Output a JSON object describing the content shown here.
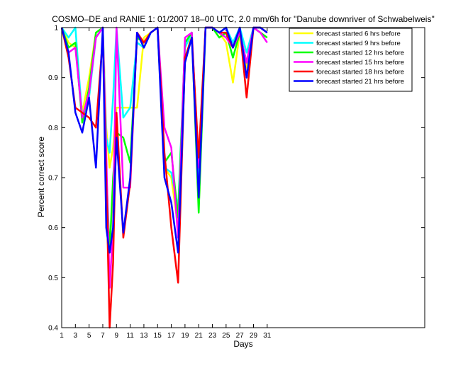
{
  "chart_data": {
    "type": "line",
    "title": "COSMO–DE and RANIE 1: 01/2007 18–00 UTC, 2.0 mm/6h for \"Danube downriver of Schwabelweis\"",
    "xlabel": "Days",
    "ylabel": "Percent correct score",
    "xlim": [
      1,
      54
    ],
    "ylim": [
      0.4,
      1.0
    ],
    "xticks": [
      1,
      3,
      5,
      7,
      9,
      11,
      13,
      15,
      17,
      19,
      21,
      23,
      25,
      27,
      29,
      31
    ],
    "yticks": [
      0.4,
      0.5,
      0.6,
      0.7,
      0.8,
      0.9,
      1.0
    ],
    "ytick_labels": [
      "0.4",
      "0.5",
      "0.6",
      "0.7",
      "0.8",
      "0.9",
      "1"
    ],
    "grid": false,
    "legend_position": "top-right",
    "x": [
      1,
      2,
      3,
      4,
      5,
      6,
      7,
      7.5,
      8,
      8.5,
      9,
      10,
      11,
      12,
      13,
      14,
      15,
      16,
      17,
      18,
      19,
      20,
      21,
      22,
      23,
      24,
      25,
      26,
      27,
      28,
      29,
      30,
      31
    ],
    "series": [
      {
        "name": "forecast started 6 hrs before",
        "color": "#ffff00",
        "values": [
          1.0,
          0.97,
          0.96,
          0.83,
          0.9,
          0.99,
          1.0,
          0.8,
          0.72,
          0.76,
          0.84,
          0.84,
          0.84,
          0.84,
          0.98,
          0.99,
          1.0,
          0.72,
          0.7,
          0.6,
          0.93,
          0.99,
          0.71,
          1.0,
          1.0,
          0.99,
          0.97,
          0.89,
          0.99,
          0.92,
          1.0,
          0.99,
          0.98
        ]
      },
      {
        "name": "forecast started 9 hrs before",
        "color": "#00ffff",
        "values": [
          1.0,
          0.98,
          1.0,
          0.82,
          0.86,
          0.98,
          1.0,
          0.78,
          0.75,
          0.86,
          1.0,
          0.82,
          0.84,
          0.97,
          0.96,
          0.99,
          1.0,
          0.72,
          0.71,
          0.64,
          0.96,
          0.99,
          0.7,
          1.0,
          1.0,
          0.99,
          1.0,
          0.97,
          1.0,
          0.95,
          1.0,
          1.0,
          0.99
        ]
      },
      {
        "name": "forecast started 12 hrs before",
        "color": "#00ff00",
        "values": [
          1.0,
          0.96,
          0.97,
          0.81,
          0.88,
          0.99,
          1.0,
          0.72,
          0.55,
          0.7,
          0.79,
          0.78,
          0.73,
          0.98,
          0.97,
          0.99,
          1.0,
          0.73,
          0.75,
          0.62,
          0.97,
          0.99,
          0.63,
          1.0,
          1.0,
          0.98,
          0.99,
          0.94,
          0.99,
          0.93,
          1.0,
          0.99,
          0.98
        ]
      },
      {
        "name": "forecast started 15 hrs before",
        "color": "#ff00ff",
        "values": [
          1.0,
          0.95,
          0.96,
          0.82,
          0.87,
          0.98,
          1.0,
          0.75,
          0.48,
          0.6,
          1.0,
          0.68,
          0.68,
          0.99,
          0.97,
          0.99,
          1.0,
          0.8,
          0.76,
          0.58,
          0.98,
          0.99,
          0.72,
          1.0,
          1.0,
          0.99,
          0.98,
          0.96,
          0.99,
          0.93,
          1.0,
          0.99,
          0.97
        ]
      },
      {
        "name": "forecast started 18 hrs before",
        "color": "#ff0000",
        "values": [
          1.0,
          0.94,
          0.84,
          0.83,
          0.82,
          0.8,
          0.98,
          0.7,
          0.4,
          0.53,
          0.83,
          0.58,
          0.69,
          0.99,
          0.97,
          0.99,
          1.0,
          0.75,
          0.6,
          0.49,
          0.94,
          0.98,
          0.74,
          1.0,
          1.0,
          0.99,
          0.99,
          0.96,
          1.0,
          0.86,
          1.0,
          1.0,
          0.99
        ]
      },
      {
        "name": "forecast started 21 hrs before",
        "color": "#0000ff",
        "values": [
          1.0,
          0.95,
          0.83,
          0.79,
          0.86,
          0.72,
          1.0,
          0.6,
          0.55,
          0.6,
          0.78,
          0.59,
          0.7,
          0.99,
          0.96,
          0.99,
          1.0,
          0.7,
          0.65,
          0.55,
          0.93,
          0.98,
          0.66,
          1.0,
          1.0,
          0.99,
          1.0,
          0.96,
          1.0,
          0.9,
          1.0,
          1.0,
          0.99
        ]
      }
    ]
  }
}
